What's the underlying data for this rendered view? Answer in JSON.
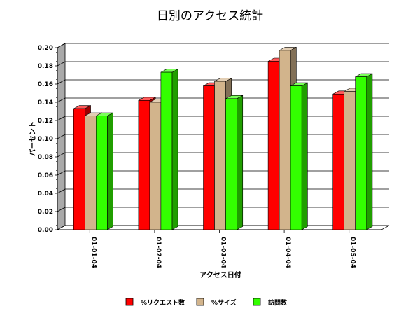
{
  "chart_data": {
    "type": "bar",
    "title": "日別のアクセス統計",
    "xlabel": "アクセス日付",
    "ylabel": "パーセント",
    "categories": [
      "01-01-04",
      "01-02-04",
      "01-03-04",
      "01-04-04",
      "01-05-04"
    ],
    "series": [
      {
        "name": "%リクエスト数",
        "color": "#ff0000",
        "values": [
          0.133,
          0.142,
          0.158,
          0.185,
          0.149
        ]
      },
      {
        "name": "%サイズ",
        "color": "#d2b48c",
        "values": [
          0.125,
          0.14,
          0.163,
          0.197,
          0.152
        ]
      },
      {
        "name": "訪問数",
        "color": "#33ff00",
        "values": [
          0.125,
          0.173,
          0.144,
          0.158,
          0.168
        ]
      }
    ],
    "ylim": [
      0,
      0.2
    ],
    "yticks": [
      "0.00",
      "0.02",
      "0.04",
      "0.06",
      "0.08",
      "0.10",
      "0.12",
      "0.14",
      "0.16",
      "0.18",
      "0.20"
    ],
    "grid": true,
    "legend_position": "bottom"
  }
}
